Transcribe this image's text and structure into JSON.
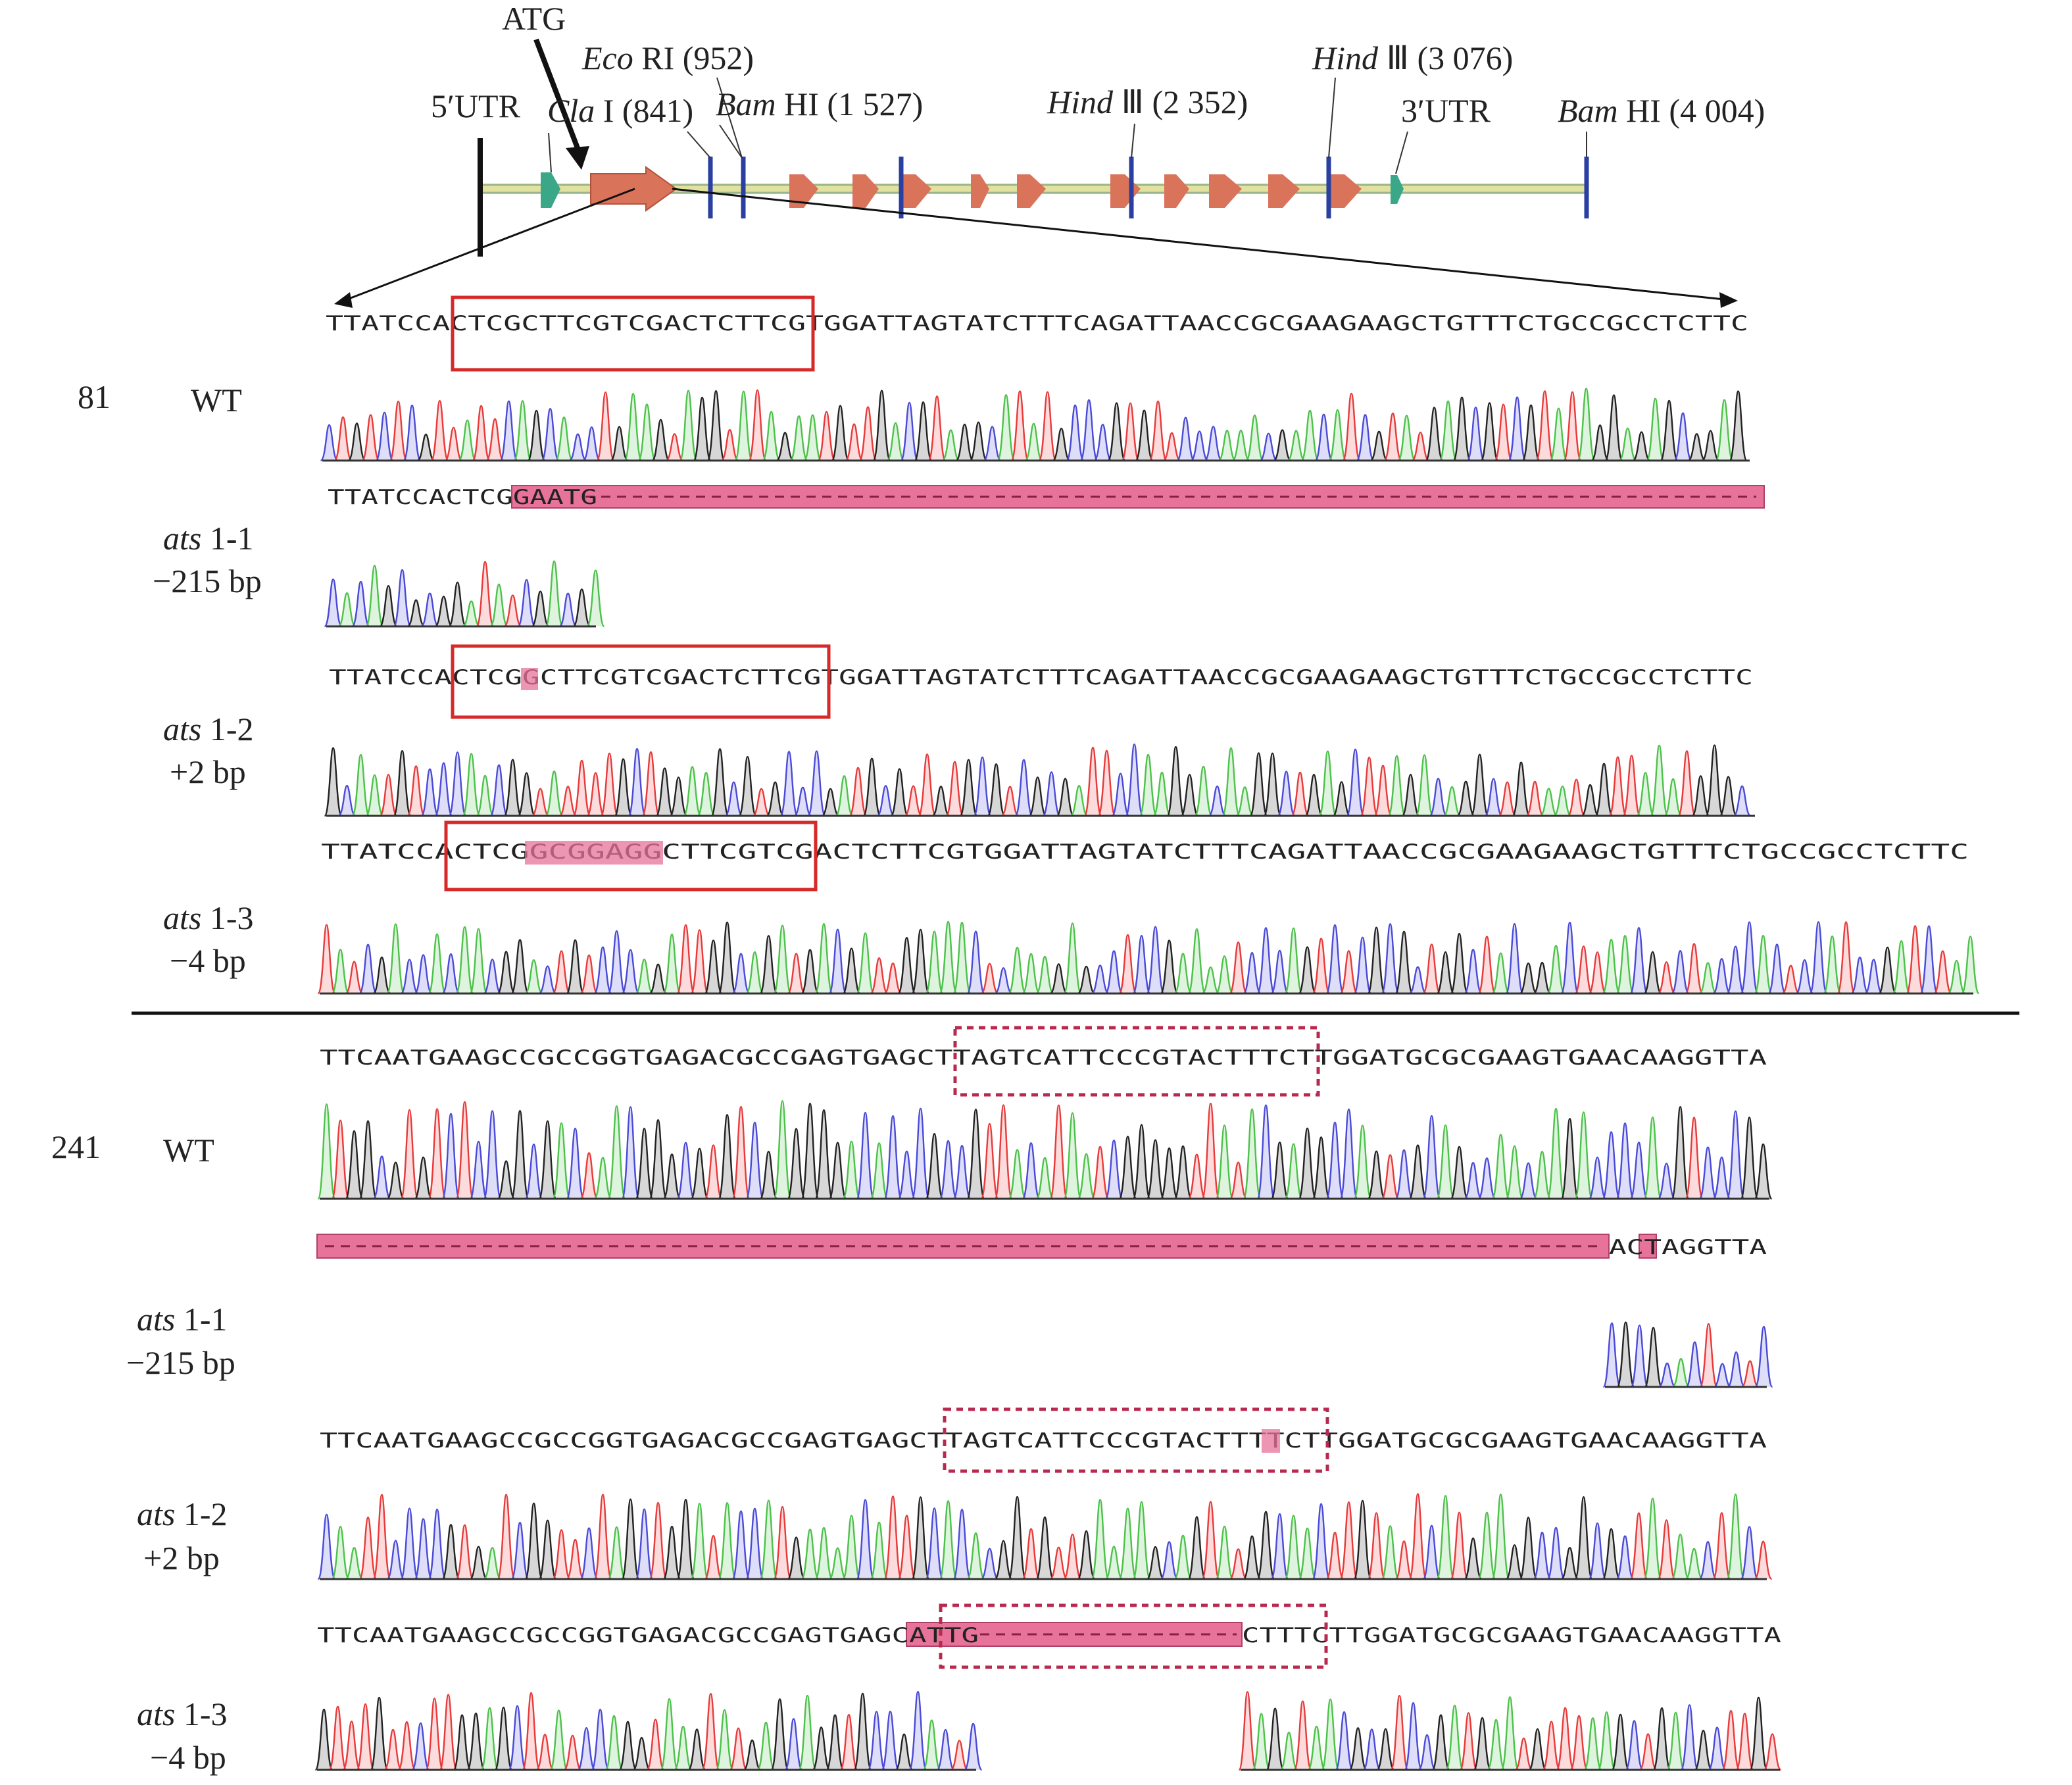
{
  "gene_map": {
    "atg_label": "ATG",
    "utr5_label": "5′UTR",
    "utr3_label": "3′UTR",
    "sites": [
      {
        "enzyme_italic": "Eco",
        "enzyme_rest": " RI",
        "position": "(952)"
      },
      {
        "enzyme_italic": "Cla",
        "enzyme_rest": " I",
        "position": "(841)"
      },
      {
        "enzyme_italic": "Bam",
        "enzyme_rest": " HI",
        "position": "(1 527)"
      },
      {
        "enzyme_italic": "Hind",
        "enzyme_rest": " Ⅲ",
        "position": "(2 352)"
      },
      {
        "enzyme_italic": "Hind",
        "enzyme_rest": " Ⅲ",
        "position": "(3 076)"
      },
      {
        "enzyme_italic": "Bam",
        "enzyme_rest": " HI",
        "position": "(4 004)"
      }
    ]
  },
  "section1": {
    "position": "81",
    "tracks": [
      {
        "name": "WT",
        "sequence": "TTATCCACTCGCTTCGTCGACTCTTCGTGGATTAGTATCTTTCAGATTAACCGCGAAGAAGCTGTTTCTGCCGCCTCTTC"
      },
      {
        "name_italic": "ats",
        "name_rest": " 1-1",
        "change": "−215 bp",
        "sequence": "TTATCCACTCGGAATG",
        "highlight": "GAATG"
      },
      {
        "name_italic": "ats",
        "name_rest": " 1-2",
        "change": "+2 bp",
        "sequence": "TTATCCACTCGGCTTCGTCGACTCTTCGTGGATTAGTATCTTTCAGATTAACCGCGAAGAAGCTGTTTCTGCCGCCTCTTC",
        "highlight": "G"
      },
      {
        "name_italic": "ats",
        "name_rest": " 1-3",
        "change": "−4 bp",
        "sequence": "TTATCCACTCGGCGGAGGCTTCGTCGACTCTTCGTGGATTAGTATCTTTCAGATTAACCGCGAAGAAGCTGTTTCTGCCGCCTCTTC",
        "highlight": "GCGGAGG"
      }
    ]
  },
  "section2": {
    "position": "241",
    "tracks": [
      {
        "name": "WT",
        "sequence": "TTCAATGAAGCCGCCGGTGAGACGCCGAGTGAGCTTAGTCATTCCCGTACTTTCTTGGATGCGCGAAGTGAACAAGGTTA"
      },
      {
        "name_italic": "ats",
        "name_rest": " 1-1",
        "change": "−215 bp",
        "sequence": "ACTAGGTTA",
        "highlight": "T"
      },
      {
        "name_italic": "ats",
        "name_rest": " 1-2",
        "change": "+2 bp",
        "sequence": "TTCAATGAAGCCGCCGGTGAGACGCCGAGTGAGCTTAGTCATTCCCGTACTTTTCTTGGATGCGCGAAGTGAACAAGGTTA",
        "highlight": "T"
      },
      {
        "name_italic": "ats",
        "name_rest": " 1-3",
        "change": "−4 bp",
        "sequence_left": "TTCAATGAAGCCGCCGGTGAGACGCCGAGTGAGCATTG",
        "sequence_right": "CTTTCTTGGATGCGCGAAGTGAACAAGGTTA",
        "highlight": "ATTG"
      }
    ]
  },
  "colors": {
    "A": "#4cc24a",
    "C": "#4a4ad8",
    "G": "#222222",
    "T": "#e83a3a",
    "exon": "#d9735a",
    "utr": "#3aa888",
    "site": "#2a3fa0",
    "box": "#d62a2a",
    "highlight": "#e7739a"
  }
}
